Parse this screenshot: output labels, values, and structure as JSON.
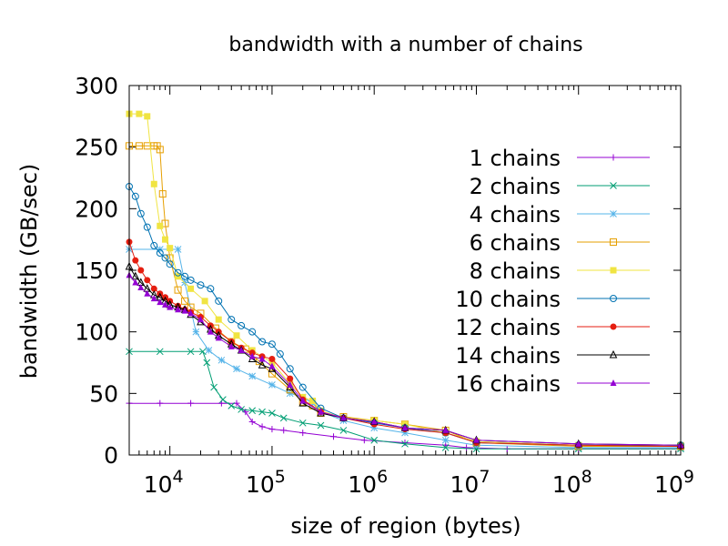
{
  "chart_data": {
    "type": "line",
    "title": "bandwidth with a number of chains",
    "xlabel": "size of region (bytes)",
    "ylabel": "bandwidth (GB/sec)",
    "x_scale": "log",
    "xlim": [
      4000,
      1000000000
    ],
    "ylim": [
      0,
      300
    ],
    "x_ticks": [
      {
        "value": 10000,
        "base": "10",
        "exp": "4"
      },
      {
        "value": 100000,
        "base": "10",
        "exp": "5"
      },
      {
        "value": 1000000,
        "base": "10",
        "exp": "6"
      },
      {
        "value": 10000000,
        "base": "10",
        "exp": "7"
      },
      {
        "value": 100000000,
        "base": "10",
        "exp": "8"
      },
      {
        "value": 1000000000,
        "base": "10",
        "exp": "9"
      }
    ],
    "y_ticks": [
      {
        "value": 0,
        "label": "0"
      },
      {
        "value": 50,
        "label": "50"
      },
      {
        "value": 100,
        "label": "100"
      },
      {
        "value": 150,
        "label": "150"
      },
      {
        "value": 200,
        "label": "200"
      },
      {
        "value": 250,
        "label": "250"
      },
      {
        "value": 300,
        "label": "300"
      }
    ],
    "grid": false,
    "legend_position": "top-right",
    "series": [
      {
        "name": "1 chains",
        "color": "#9400d3",
        "marker": "plus",
        "x": [
          4000,
          8000,
          16000,
          32000,
          45000,
          55000,
          64000,
          80000,
          100000,
          130000,
          200000,
          400000,
          800000,
          2000000,
          5000000,
          8000000,
          20000000,
          100000000,
          1000000000
        ],
        "y": [
          42,
          42,
          42,
          42,
          42,
          35,
          27,
          23,
          21,
          20,
          18,
          15,
          12,
          10,
          8,
          6,
          5,
          5,
          5
        ]
      },
      {
        "name": "2 chains",
        "color": "#009e73",
        "marker": "cross",
        "x": [
          4000,
          8000,
          16000,
          21000,
          23000,
          27000,
          33000,
          40000,
          50000,
          64000,
          80000,
          100000,
          130000,
          200000,
          300000,
          500000,
          1000000,
          2000000,
          5000000,
          10000000,
          100000000,
          1000000000
        ],
        "y": [
          84,
          84,
          84,
          84,
          75,
          55,
          45,
          40,
          37,
          36,
          35,
          34,
          30,
          26,
          24,
          20,
          12,
          9,
          6,
          5,
          5,
          5
        ]
      },
      {
        "name": "4 chains",
        "color": "#56b4e9",
        "marker": "star",
        "x": [
          4000,
          8000,
          12000,
          14000,
          18000,
          24000,
          32000,
          45000,
          64000,
          100000,
          150000,
          200000,
          250000,
          300000,
          500000,
          1000000,
          2000000,
          5000000,
          10000000,
          100000000,
          1000000000
        ],
        "y": [
          167,
          167,
          167,
          140,
          100,
          85,
          77,
          70,
          64,
          57,
          50,
          47,
          42,
          35,
          28,
          22,
          18,
          12,
          8,
          6,
          6
        ]
      },
      {
        "name": "6 chains",
        "color": "#e69f00",
        "marker": "square",
        "x": [
          4000,
          5000,
          6000,
          7000,
          7500,
          8000,
          8500,
          9000,
          10000,
          12000,
          14000,
          16000,
          20000,
          28000,
          40000,
          55000,
          75000,
          100000,
          150000,
          200000,
          250000,
          300000,
          500000,
          1000000,
          2000000,
          5000000,
          10000000,
          100000000,
          1000000000
        ],
        "y": [
          251,
          251,
          251,
          251,
          251,
          248,
          212,
          188,
          160,
          134,
          125,
          120,
          115,
          103,
          92,
          86,
          76,
          66,
          53,
          43,
          40,
          34,
          31,
          28,
          25,
          20,
          10,
          7,
          7
        ]
      },
      {
        "name": "8 chains",
        "color": "#f0e442",
        "marker": "filled-square",
        "x": [
          4000,
          5000,
          6000,
          7000,
          8000,
          9000,
          10000,
          12000,
          16000,
          22000,
          30000,
          45000,
          64000,
          100000,
          150000,
          200000,
          250000,
          300000,
          500000,
          1000000,
          2000000,
          5000000,
          10000000,
          100000000,
          1000000000
        ],
        "y": [
          277,
          277,
          275,
          220,
          186,
          175,
          168,
          145,
          135,
          125,
          110,
          97,
          85,
          75,
          58,
          47,
          44,
          36,
          30,
          28,
          25,
          18,
          11,
          8,
          8
        ]
      },
      {
        "name": "10 chains",
        "color": "#0072b2",
        "marker": "circle",
        "x": [
          4000,
          4600,
          5200,
          6000,
          7000,
          8000,
          9000,
          10000,
          12000,
          14000,
          16000,
          20000,
          25000,
          30000,
          40000,
          50000,
          64000,
          80000,
          100000,
          120000,
          150000,
          200000,
          300000,
          500000,
          1000000,
          2000000,
          5000000,
          10000000,
          100000000,
          1000000000
        ],
        "y": [
          218,
          210,
          196,
          185,
          170,
          164,
          160,
          155,
          148,
          145,
          142,
          138,
          135,
          125,
          110,
          105,
          100,
          92,
          90,
          82,
          70,
          55,
          38,
          30,
          26,
          22,
          18,
          10,
          8,
          8
        ]
      },
      {
        "name": "12 chains",
        "color": "#e51e10",
        "marker": "filled-circle",
        "x": [
          4000,
          4600,
          5200,
          6000,
          7000,
          8000,
          9000,
          10000,
          12000,
          14000,
          16000,
          20000,
          25000,
          30000,
          40000,
          50000,
          64000,
          80000,
          100000,
          150000,
          200000,
          300000,
          500000,
          1000000,
          2000000,
          5000000,
          10000000,
          100000000,
          1000000000
        ],
        "y": [
          173,
          158,
          150,
          142,
          135,
          131,
          128,
          125,
          121,
          118,
          116,
          112,
          105,
          100,
          92,
          87,
          83,
          80,
          78,
          62,
          45,
          35,
          30,
          25,
          21,
          18,
          10,
          8,
          7
        ]
      },
      {
        "name": "14 chains",
        "color": "#000000",
        "marker": "triangle",
        "x": [
          4000,
          4600,
          5200,
          6000,
          7000,
          8000,
          9000,
          10000,
          12000,
          14000,
          16000,
          20000,
          25000,
          30000,
          40000,
          50000,
          64000,
          80000,
          100000,
          150000,
          200000,
          300000,
          500000,
          1000000,
          2000000,
          5000000,
          10000000,
          100000000,
          1000000000
        ],
        "y": [
          153,
          145,
          140,
          135,
          130,
          128,
          125,
          122,
          120,
          118,
          114,
          108,
          102,
          97,
          90,
          85,
          78,
          73,
          70,
          55,
          42,
          34,
          30,
          27,
          22,
          20,
          12,
          9,
          8
        ]
      },
      {
        "name": "16 chains",
        "color": "#9400d3",
        "marker": "filled-triangle",
        "x": [
          4000,
          4600,
          5200,
          6000,
          7000,
          8000,
          9000,
          10000,
          12000,
          14000,
          16000,
          20000,
          25000,
          30000,
          40000,
          50000,
          64000,
          80000,
          100000,
          150000,
          200000,
          300000,
          500000,
          1000000,
          2000000,
          5000000,
          10000000,
          100000000,
          1000000000
        ],
        "y": [
          146,
          140,
          136,
          131,
          127,
          124,
          122,
          120,
          118,
          117,
          115,
          110,
          100,
          95,
          88,
          85,
          80,
          78,
          72,
          57,
          44,
          35,
          30,
          27,
          22,
          20,
          12,
          9,
          8
        ]
      }
    ]
  }
}
